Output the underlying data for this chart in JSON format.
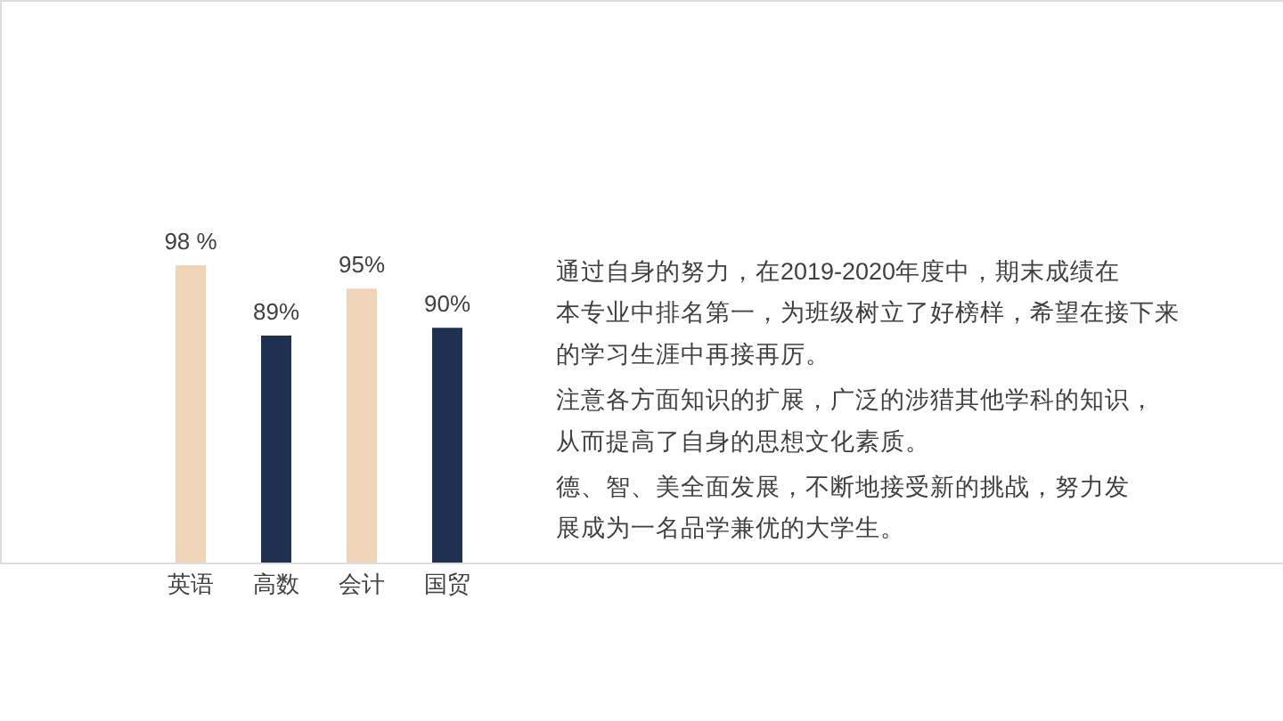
{
  "chart_data": {
    "type": "bar",
    "categories": [
      "英语",
      "高数",
      "会计",
      "国贸"
    ],
    "values": [
      98,
      89,
      95,
      90
    ],
    "colors": [
      "#f0d5bb",
      "#1e3150",
      "#f0d5bb",
      "#1e3150"
    ],
    "value_labels": [
      "98 %",
      "89%",
      "95%",
      "90%"
    ],
    "ylim": [
      60,
      98
    ],
    "tick_labels": "x",
    "annotations": [
      "通过自身的努力，在2019-2020年度中，期末成绩在本专业中排名第一，为班级树立了好榜样，希望在接下来的学习生涯中再接再厉。",
      "注意各方面知识的扩展，广泛的涉猎其他学科的知识，从而提高了自身的思想文化素质。",
      "德、智、美全面发展，不断地接受新的挑战，努力发展成为一名品学兼优的大学生。"
    ]
  }
}
